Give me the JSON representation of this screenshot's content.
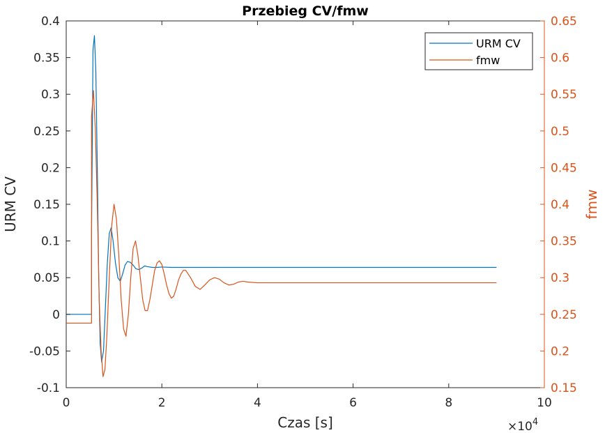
{
  "chart_data": {
    "type": "line",
    "title": "Przebieg CV/fmw",
    "xlabel": "Czas [s]",
    "x_exponent_label": "×10",
    "x_exponent_power": "4",
    "ylabel_left": "URM CV",
    "ylabel_right": "fmw",
    "xlim": [
      0,
      100000
    ],
    "ylim_left": [
      -0.1,
      0.4
    ],
    "ylim_right": [
      0.15,
      0.65
    ],
    "x_ticks": [
      0,
      20000,
      40000,
      60000,
      80000,
      100000
    ],
    "x_tick_labels": [
      "0",
      "2",
      "4",
      "6",
      "8",
      "10"
    ],
    "y_left_ticks": [
      -0.1,
      -0.05,
      0,
      0.05,
      0.1,
      0.15,
      0.2,
      0.25,
      0.3,
      0.35,
      0.4
    ],
    "y_left_tick_labels": [
      "-0.1",
      "-0.05",
      "0",
      "0.05",
      "0.1",
      "0.15",
      "0.2",
      "0.25",
      "0.3",
      "0.35",
      "0.4"
    ],
    "y_right_ticks": [
      0.15,
      0.2,
      0.25,
      0.3,
      0.35,
      0.4,
      0.45,
      0.5,
      0.55,
      0.6,
      0.65
    ],
    "y_right_tick_labels": [
      "0.15",
      "0.2",
      "0.25",
      "0.3",
      "0.35",
      "0.4",
      "0.45",
      "0.5",
      "0.55",
      "0.6",
      "0.65"
    ],
    "legend_position": "top-right",
    "grid": false,
    "series": [
      {
        "name": "URM CV",
        "axis": "left",
        "color": "#0072bd",
        "x": [
          0,
          5300,
          5300,
          5600,
          5900,
          6200,
          6500,
          6800,
          7100,
          7400,
          7800,
          8200,
          8600,
          9000,
          9400,
          9800,
          10300,
          10800,
          11300,
          11800,
          12300,
          12800,
          13400,
          14000,
          14600,
          15200,
          15800,
          16400,
          17000,
          18000,
          19000,
          20000,
          22000,
          25000,
          30000,
          40000,
          50000,
          60000,
          70000,
          80000,
          90000
        ],
        "values": [
          0,
          0,
          0.11,
          0.36,
          0.38,
          0.33,
          0.2,
          0.05,
          -0.04,
          -0.065,
          -0.05,
          0.01,
          0.07,
          0.11,
          0.118,
          0.1,
          0.07,
          0.05,
          0.045,
          0.055,
          0.067,
          0.072,
          0.071,
          0.067,
          0.062,
          0.061,
          0.063,
          0.066,
          0.065,
          0.064,
          0.064,
          0.0645,
          0.064,
          0.064,
          0.064,
          0.064,
          0.064,
          0.064,
          0.064,
          0.064,
          0.064
        ]
      },
      {
        "name": "fmw",
        "axis": "right",
        "color": "#d95319",
        "x": [
          0,
          5300,
          5300,
          5700,
          6100,
          6500,
          6900,
          7300,
          7700,
          8100,
          8500,
          9000,
          9500,
          10000,
          10500,
          11000,
          11500,
          12000,
          12500,
          13000,
          13500,
          14000,
          14500,
          15000,
          15500,
          16000,
          16500,
          17000,
          17500,
          18000,
          18500,
          19000,
          19500,
          20000,
          20500,
          21000,
          21500,
          22000,
          22500,
          23000,
          23500,
          24000,
          24500,
          25000,
          26000,
          27000,
          28000,
          29000,
          30000,
          31000,
          32000,
          33000,
          34000,
          35000,
          36000,
          37000,
          38000,
          40000,
          42000,
          45000,
          50000,
          60000,
          70000,
          80000,
          90000
        ],
        "values": [
          0.238,
          0.238,
          0.52,
          0.555,
          0.5,
          0.4,
          0.27,
          0.2,
          0.165,
          0.175,
          0.22,
          0.3,
          0.37,
          0.4,
          0.38,
          0.33,
          0.27,
          0.23,
          0.22,
          0.25,
          0.3,
          0.34,
          0.35,
          0.33,
          0.3,
          0.27,
          0.255,
          0.255,
          0.27,
          0.29,
          0.31,
          0.32,
          0.323,
          0.318,
          0.305,
          0.29,
          0.278,
          0.272,
          0.275,
          0.285,
          0.297,
          0.305,
          0.31,
          0.31,
          0.3,
          0.288,
          0.284,
          0.29,
          0.297,
          0.3,
          0.298,
          0.293,
          0.29,
          0.291,
          0.294,
          0.295,
          0.294,
          0.293,
          0.293,
          0.293,
          0.293,
          0.293,
          0.293,
          0.293,
          0.293
        ]
      }
    ]
  }
}
